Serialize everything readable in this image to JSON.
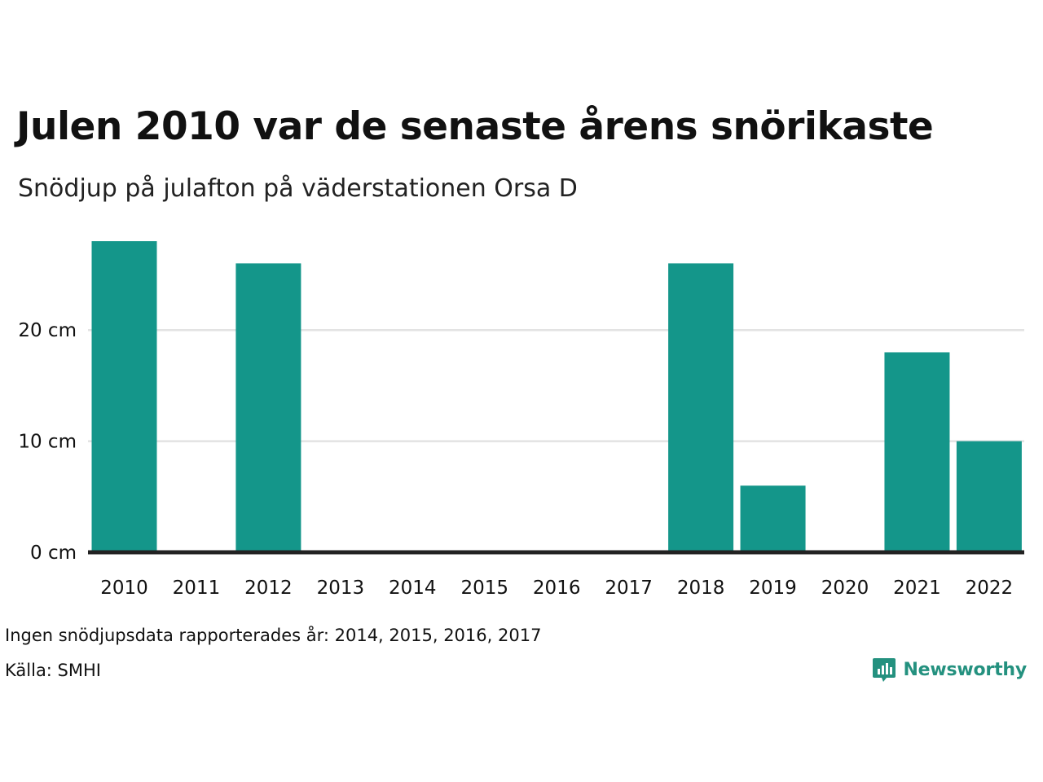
{
  "title": "Julen 2010 var de senaste årens snörikaste",
  "subtitle": "Snödjup på julafton på väderstationen Orsa D",
  "footnote": "Ingen snödjupsdata rapporterades år: 2014, 2015, 2016, 2017",
  "source": "Källa: SMHI",
  "brand": {
    "name": "Newsworthy",
    "icon": "bar-chart-speech-bubble-icon",
    "color": "#24917f"
  },
  "colors": {
    "bar": "#14968a",
    "grid": "#e3e3e3",
    "baseline": "#222222"
  },
  "chart_data": {
    "type": "bar",
    "title": "Julen 2010 var de senaste årens snörikaste",
    "subtitle": "Snödjup på julafton på väderstationen Orsa D",
    "xlabel": "",
    "ylabel": "",
    "categories": [
      "2010",
      "2011",
      "2012",
      "2013",
      "2014",
      "2015",
      "2016",
      "2017",
      "2018",
      "2019",
      "2020",
      "2021",
      "2022"
    ],
    "values": [
      28,
      0,
      26,
      0,
      null,
      null,
      null,
      null,
      26,
      6,
      0,
      18,
      10
    ],
    "ylim": [
      0,
      28
    ],
    "yticks": [
      0,
      10,
      20
    ],
    "ytick_labels": [
      "0 cm",
      "10 cm",
      "20 cm"
    ],
    "grid": true,
    "legend": "none"
  }
}
